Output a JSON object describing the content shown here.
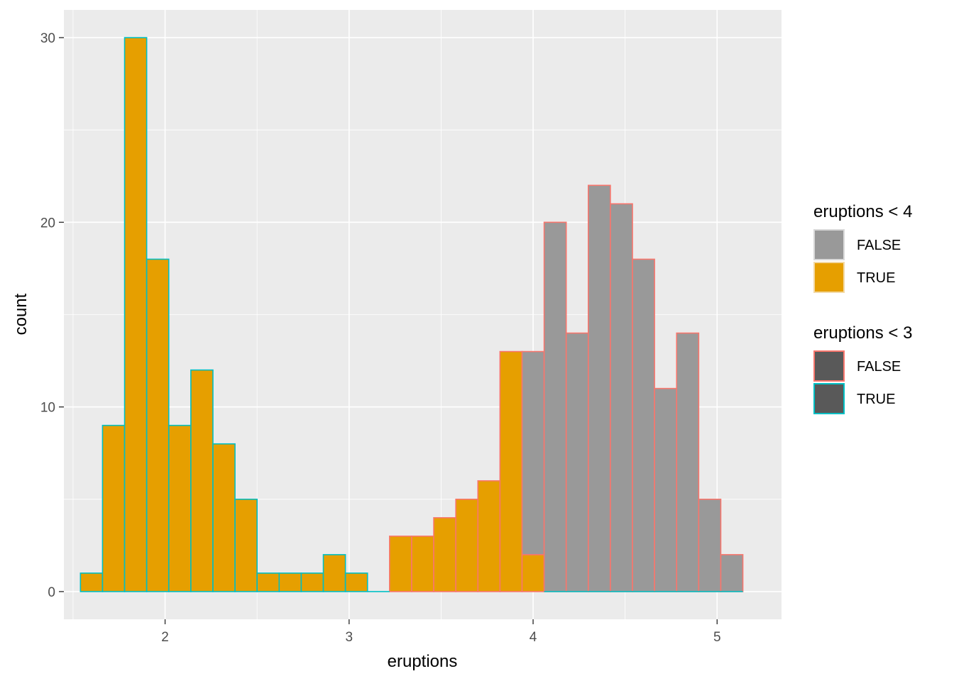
{
  "chart_data": {
    "type": "bar",
    "xlabel": "eruptions",
    "ylabel": "count",
    "xlim": [
      1.45,
      5.35
    ],
    "ylim": [
      -1.5,
      31.5
    ],
    "xticks": [
      2,
      3,
      4,
      5
    ],
    "yticks": [
      0,
      10,
      20,
      30
    ],
    "grid": true,
    "legend_position": "right",
    "bin_width": 0.12,
    "fill_colors": {
      "FALSE": "#999999",
      "TRUE": "#E69F00"
    },
    "outline_colors": {
      "FALSE": "#F8766D",
      "TRUE": "#00BFC4"
    },
    "bins": [
      {
        "x": 1.6,
        "fill": "TRUE",
        "outline": "TRUE",
        "count": 1
      },
      {
        "x": 1.72,
        "fill": "TRUE",
        "outline": "TRUE",
        "count": 9
      },
      {
        "x": 1.84,
        "fill": "TRUE",
        "outline": "TRUE",
        "count": 30
      },
      {
        "x": 1.96,
        "fill": "TRUE",
        "outline": "TRUE",
        "count": 18
      },
      {
        "x": 2.08,
        "fill": "TRUE",
        "outline": "TRUE",
        "count": 9
      },
      {
        "x": 2.2,
        "fill": "TRUE",
        "outline": "TRUE",
        "count": 12
      },
      {
        "x": 2.32,
        "fill": "TRUE",
        "outline": "TRUE",
        "count": 8
      },
      {
        "x": 2.44,
        "fill": "TRUE",
        "outline": "TRUE",
        "count": 5
      },
      {
        "x": 2.56,
        "fill": "TRUE",
        "outline": "TRUE",
        "count": 1
      },
      {
        "x": 2.68,
        "fill": "TRUE",
        "outline": "TRUE",
        "count": 1
      },
      {
        "x": 2.8,
        "fill": "TRUE",
        "outline": "TRUE",
        "count": 1
      },
      {
        "x": 2.92,
        "fill": "TRUE",
        "outline": "TRUE",
        "count": 2
      },
      {
        "x": 3.04,
        "fill": "TRUE",
        "outline": "TRUE",
        "count": 1
      },
      {
        "x": 3.16,
        "fill": "TRUE",
        "outline": "FALSE",
        "count": 0
      },
      {
        "x": 3.28,
        "fill": "TRUE",
        "outline": "FALSE",
        "count": 3
      },
      {
        "x": 3.4,
        "fill": "TRUE",
        "outline": "FALSE",
        "count": 3
      },
      {
        "x": 3.52,
        "fill": "TRUE",
        "outline": "FALSE",
        "count": 4
      },
      {
        "x": 3.64,
        "fill": "TRUE",
        "outline": "FALSE",
        "count": 5
      },
      {
        "x": 3.76,
        "fill": "TRUE",
        "outline": "FALSE",
        "count": 6
      },
      {
        "x": 3.88,
        "fill": "TRUE",
        "outline": "FALSE",
        "count": 13
      },
      {
        "x": 4.0,
        "fill": "TRUE",
        "outline": "FALSE",
        "count": 2
      },
      {
        "x": 4.0,
        "fill": "FALSE",
        "outline": "FALSE",
        "count": 11
      },
      {
        "x": 4.12,
        "fill": "FALSE",
        "outline": "FALSE",
        "count": 20
      },
      {
        "x": 4.24,
        "fill": "FALSE",
        "outline": "FALSE",
        "count": 14
      },
      {
        "x": 4.36,
        "fill": "FALSE",
        "outline": "FALSE",
        "count": 22
      },
      {
        "x": 4.48,
        "fill": "FALSE",
        "outline": "FALSE",
        "count": 21
      },
      {
        "x": 4.6,
        "fill": "FALSE",
        "outline": "FALSE",
        "count": 18
      },
      {
        "x": 4.72,
        "fill": "FALSE",
        "outline": "FALSE",
        "count": 11
      },
      {
        "x": 4.84,
        "fill": "FALSE",
        "outline": "FALSE",
        "count": 14
      },
      {
        "x": 4.96,
        "fill": "FALSE",
        "outline": "FALSE",
        "count": 5
      },
      {
        "x": 5.08,
        "fill": "FALSE",
        "outline": "FALSE",
        "count": 2
      }
    ],
    "zero_bins_true_fill_true_outline": [
      3.16
    ],
    "zero_bins_false_fill_true_outline": [
      4.12,
      4.24,
      4.36,
      4.48,
      4.6,
      4.72,
      4.84,
      4.96,
      5.08
    ],
    "legends": [
      {
        "title": "eruptions < 4",
        "kind": "fill",
        "items": [
          {
            "label": "FALSE",
            "fill": "#999999",
            "stroke": "#d9d9d9"
          },
          {
            "label": "TRUE",
            "fill": "#E69F00",
            "stroke": "#f2d9a6"
          }
        ]
      },
      {
        "title": "eruptions < 3",
        "kind": "colour",
        "items": [
          {
            "label": "FALSE",
            "fill": "#595959",
            "stroke": "#F8766D"
          },
          {
            "label": "TRUE",
            "fill": "#595959",
            "stroke": "#00BFC4"
          }
        ]
      }
    ]
  }
}
